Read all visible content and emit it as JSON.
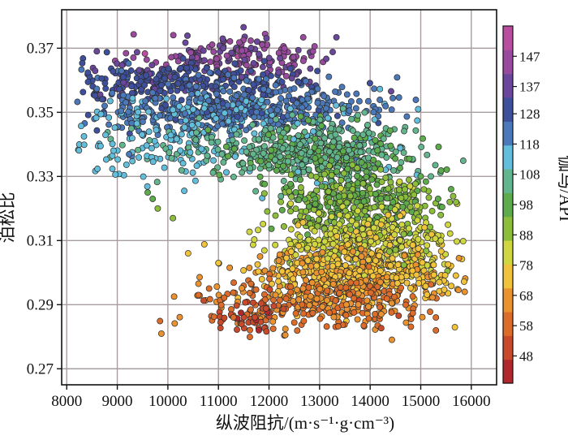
{
  "chart_data": {
    "type": "scatter",
    "title": "",
    "xlabel": "纵波阻抗/(m·s⁻¹·g·cm⁻³)",
    "ylabel": "泊松比",
    "xlim": [
      7900,
      16500
    ],
    "ylim": [
      0.265,
      0.382
    ],
    "x_ticks": [
      8000,
      9000,
      10000,
      11000,
      12000,
      13000,
      14000,
      15000,
      16000
    ],
    "x_tick_labels": [
      "8000",
      "9000",
      "10000",
      "11000",
      "12000",
      "13000",
      "14000",
      "15000",
      "16000"
    ],
    "y_ticks": [
      0.27,
      0.29,
      0.31,
      0.33,
      0.35,
      0.37
    ],
    "y_tick_labels": [
      "0.27",
      "0.29",
      "0.31",
      "0.33",
      "0.35",
      "0.37"
    ],
    "grid": true,
    "colorbar": {
      "label": "伽马/API",
      "range": [
        39,
        157
      ],
      "ticks": [
        48,
        58,
        68,
        78,
        88,
        98,
        108,
        118,
        128,
        137,
        147
      ],
      "tick_labels": [
        "48",
        "58",
        "68",
        "78",
        "88",
        "98",
        "108",
        "118",
        "128",
        "137",
        "147"
      ],
      "colors": [
        "#b1282c",
        "#c84a2a",
        "#dc6c2a",
        "#e9922f",
        "#f0c33a",
        "#cfd63f",
        "#8cbe3c",
        "#5eab4b",
        "#62b58c",
        "#63bedc",
        "#4a78b8",
        "#3e4f9c",
        "#6a479a",
        "#9a4a9e",
        "#b94ea0"
      ]
    },
    "series": [
      {
        "clusters": [
          {
            "gamma": 142,
            "cx": 11500,
            "cy": 0.3675,
            "sx": 900,
            "sy": 0.0035,
            "n": 170
          },
          {
            "gamma": 130,
            "cx": 10300,
            "cy": 0.3595,
            "sx": 1400,
            "sy": 0.0033,
            "n": 320
          },
          {
            "gamma": 121,
            "cx": 11300,
            "cy": 0.3505,
            "sx": 1400,
            "sy": 0.0038,
            "n": 520
          },
          {
            "gamma": 112,
            "cx": 10200,
            "cy": 0.339,
            "sx": 1500,
            "sy": 0.006,
            "n": 230
          },
          {
            "gamma": 104,
            "cx": 13000,
            "cy": 0.337,
            "sx": 900,
            "sy": 0.005,
            "n": 540
          },
          {
            "gamma": 93,
            "cx": 13700,
            "cy": 0.322,
            "sx": 850,
            "sy": 0.0045,
            "n": 360
          },
          {
            "gamma": 82,
            "cx": 14000,
            "cy": 0.309,
            "sx": 850,
            "sy": 0.0045,
            "n": 440
          },
          {
            "gamma": 72,
            "cx": 13700,
            "cy": 0.299,
            "sx": 1000,
            "sy": 0.004,
            "n": 470
          },
          {
            "gamma": 62,
            "cx": 13000,
            "cy": 0.2905,
            "sx": 1200,
            "sy": 0.004,
            "n": 300
          },
          {
            "gamma": 51,
            "cx": 11600,
            "cy": 0.286,
            "sx": 350,
            "sy": 0.003,
            "n": 45
          }
        ],
        "outliers": [
          {
            "x": 9800,
            "y": 0.32,
            "g": 92
          },
          {
            "x": 10100,
            "y": 0.317,
            "g": 90
          },
          {
            "x": 10400,
            "y": 0.306,
            "g": 74
          },
          {
            "x": 11000,
            "y": 0.303,
            "g": 76
          },
          {
            "x": 9700,
            "y": 0.323,
            "g": 95
          },
          {
            "x": 9600,
            "y": 0.325,
            "g": 98
          },
          {
            "x": 15600,
            "y": 0.326,
            "g": 96
          },
          {
            "x": 15400,
            "y": 0.31,
            "g": 80
          },
          {
            "x": 15700,
            "y": 0.322,
            "g": 88
          },
          {
            "x": 15300,
            "y": 0.286,
            "g": 58
          },
          {
            "x": 15300,
            "y": 0.282,
            "g": 56
          },
          {
            "x": 15000,
            "y": 0.33,
            "g": 100
          },
          {
            "x": 15200,
            "y": 0.33,
            "g": 104
          }
        ]
      }
    ]
  }
}
